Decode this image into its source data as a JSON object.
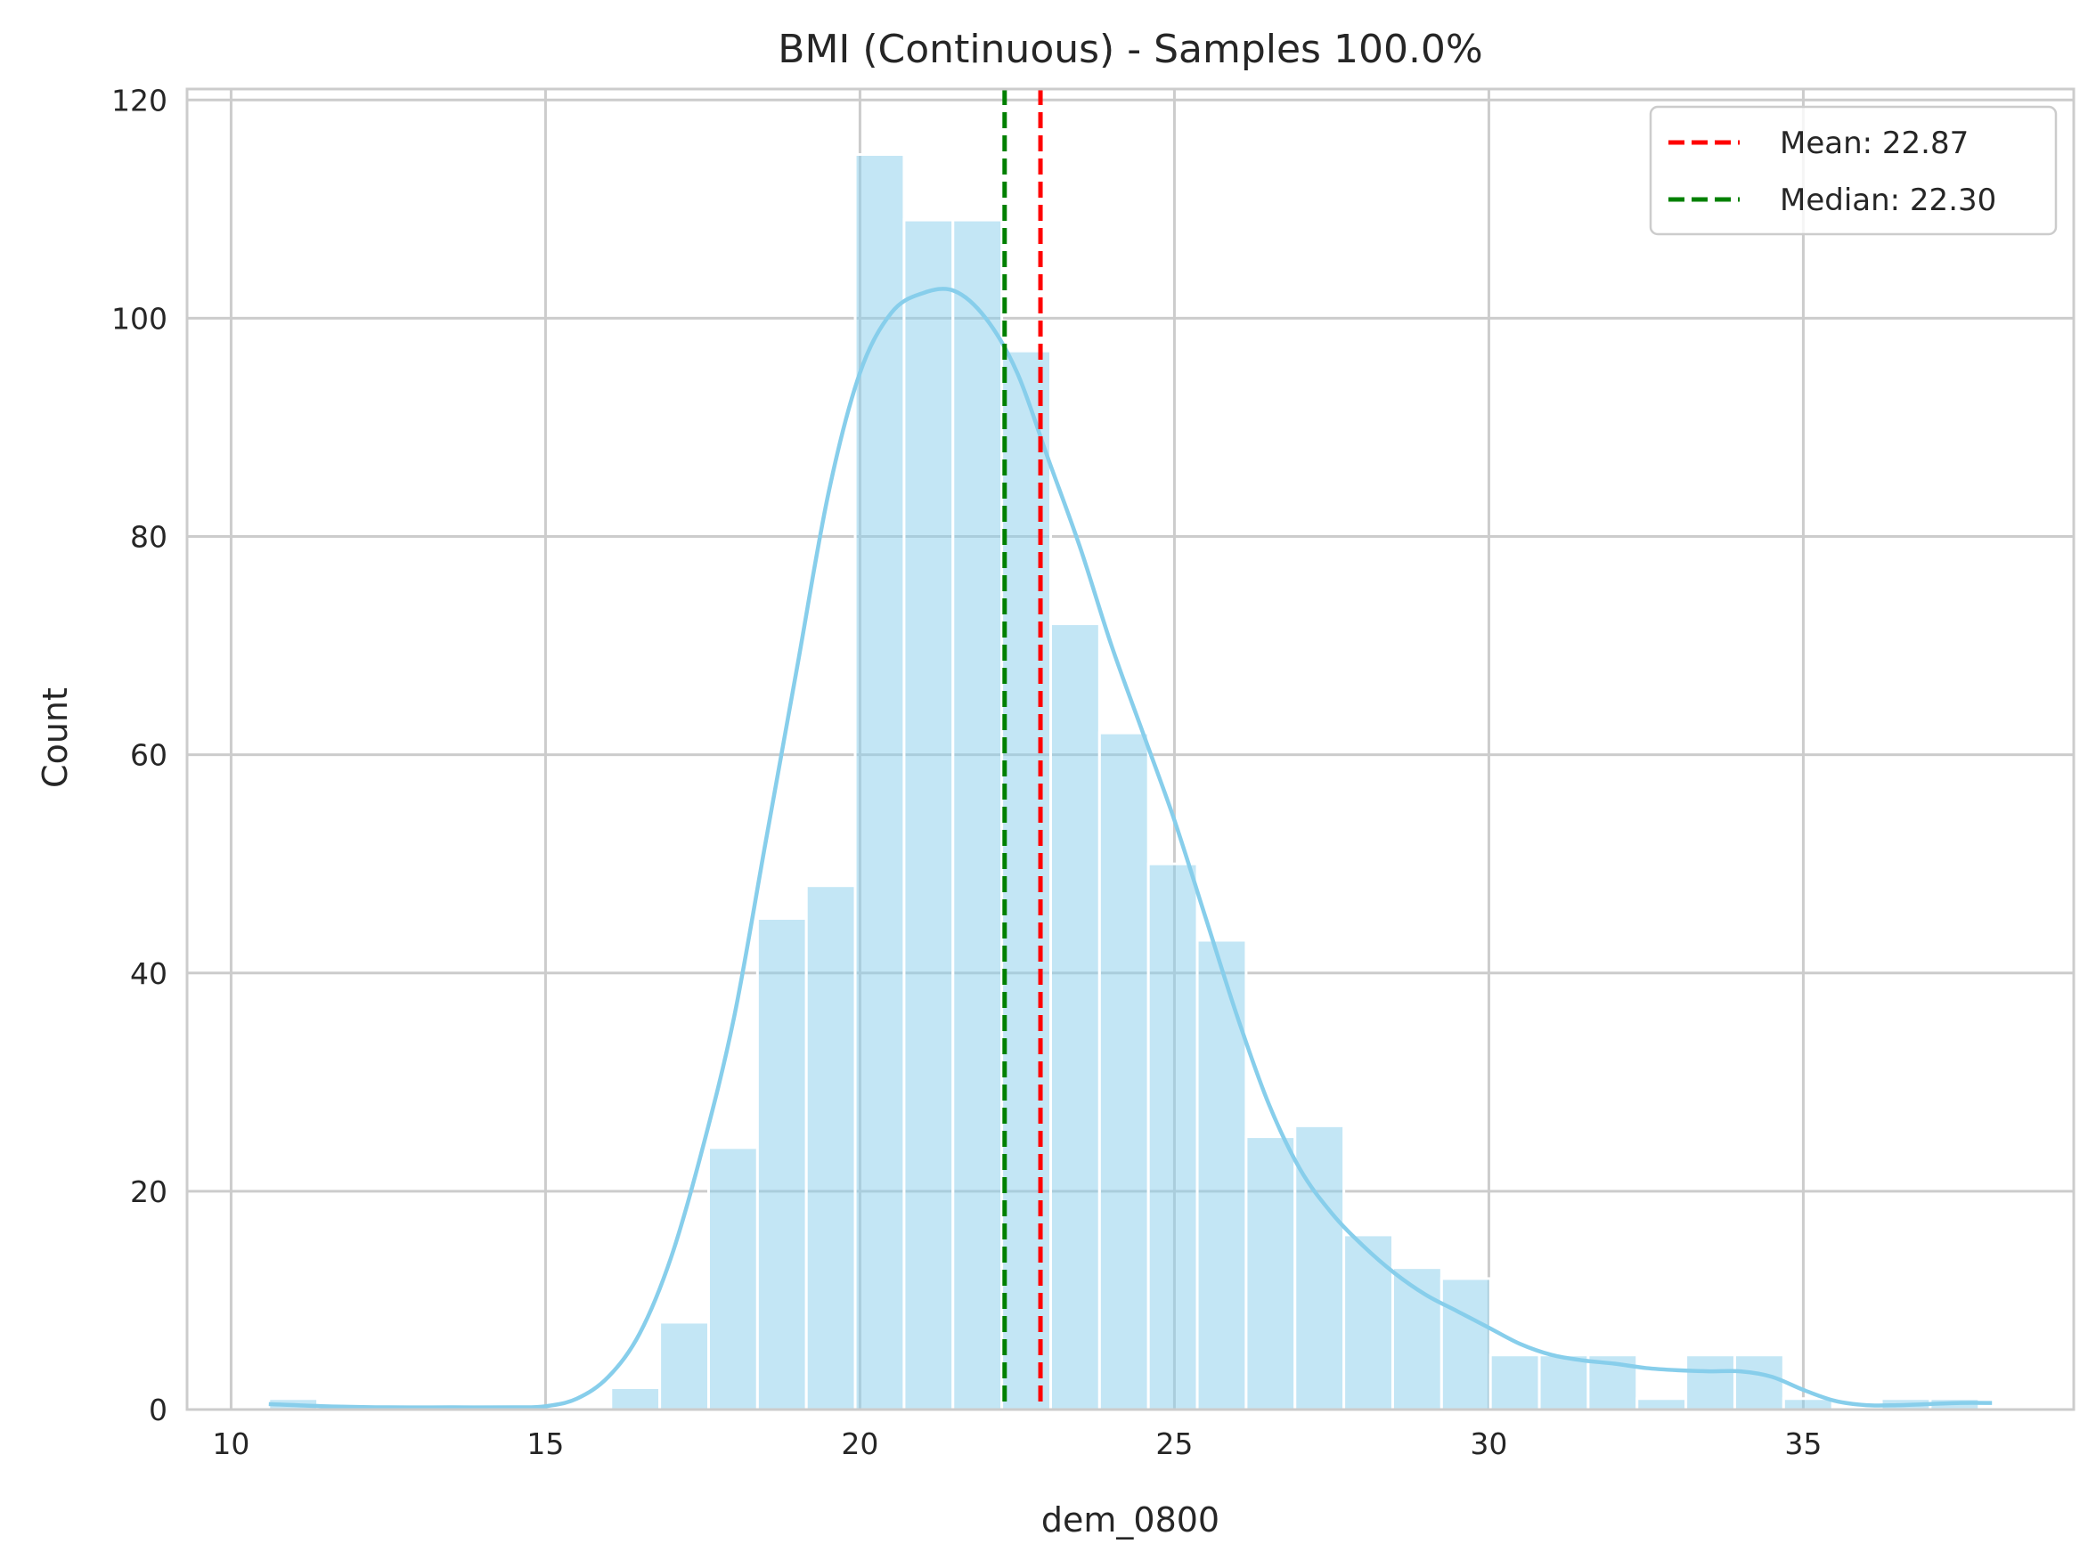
{
  "chart_data": {
    "type": "bar",
    "title": "BMI (Continuous) - Samples 100.0%",
    "xlabel": "dem_0800",
    "ylabel": "Count",
    "xlim": [
      9.3,
      39.3
    ],
    "ylim": [
      0,
      121
    ],
    "x_ticks": [
      10,
      15,
      20,
      25,
      30,
      35
    ],
    "y_ticks": [
      0,
      20,
      40,
      60,
      80,
      100,
      120
    ],
    "grid": true,
    "legend_position": "top-right",
    "bin_edges": [
      10.6,
      11.377,
      12.154,
      12.931,
      13.708,
      14.485,
      15.262,
      16.039,
      16.816,
      17.593,
      18.37,
      19.147,
      19.924,
      20.701,
      21.478,
      22.255,
      23.032,
      23.809,
      24.586,
      25.363,
      26.14,
      26.917,
      27.694,
      28.471,
      29.248,
      30.025,
      30.802,
      31.579,
      32.356,
      33.133,
      33.91,
      34.687,
      35.464,
      36.241,
      37.018,
      37.795
    ],
    "counts": [
      1,
      0,
      0,
      0,
      0,
      0,
      0,
      2,
      8,
      24,
      45,
      48,
      115,
      109,
      109,
      97,
      72,
      62,
      50,
      43,
      25,
      26,
      16,
      13,
      12,
      5,
      5,
      5,
      1,
      5,
      5,
      1,
      0,
      1,
      1
    ],
    "bar_color": "#87CEEB",
    "kde": {
      "color": "#87CEEB",
      "x": [
        10.6,
        11.5,
        12.5,
        13.5,
        14.5,
        15.0,
        15.5,
        16.0,
        16.5,
        17.0,
        17.5,
        18.0,
        18.5,
        19.0,
        19.5,
        20.0,
        20.5,
        21.0,
        21.5,
        22.0,
        22.5,
        23.0,
        23.5,
        24.0,
        24.5,
        25.0,
        25.5,
        26.0,
        26.5,
        27.0,
        27.5,
        28.0,
        28.5,
        29.0,
        29.5,
        30.0,
        30.5,
        31.0,
        31.5,
        32.0,
        32.5,
        33.0,
        33.5,
        34.0,
        34.5,
        35.0,
        35.5,
        36.0,
        36.5,
        37.0,
        37.5,
        38.0
      ],
      "y": [
        0.5,
        0.3,
        0.2,
        0.2,
        0.2,
        0.3,
        1.0,
        3.0,
        7.0,
        14.0,
        24.0,
        36.0,
        52.0,
        68.0,
        84.0,
        95.0,
        100.5,
        102.3,
        102.5,
        100.0,
        95.0,
        87.0,
        79.0,
        70.0,
        62.0,
        54.0,
        45.0,
        36.0,
        28.0,
        22.0,
        18.0,
        15.0,
        12.5,
        10.5,
        9.0,
        7.5,
        6.0,
        5.0,
        4.5,
        4.2,
        3.8,
        3.6,
        3.5,
        3.5,
        3.0,
        1.8,
        0.8,
        0.4,
        0.4,
        0.5,
        0.6,
        0.6
      ]
    },
    "series": [
      {
        "name": "Mean: 22.87",
        "value": 22.87,
        "color": "#ff0000",
        "style": "dashed"
      },
      {
        "name": "Median: 22.30",
        "value": 22.3,
        "color": "#008000",
        "style": "dashed"
      }
    ]
  }
}
